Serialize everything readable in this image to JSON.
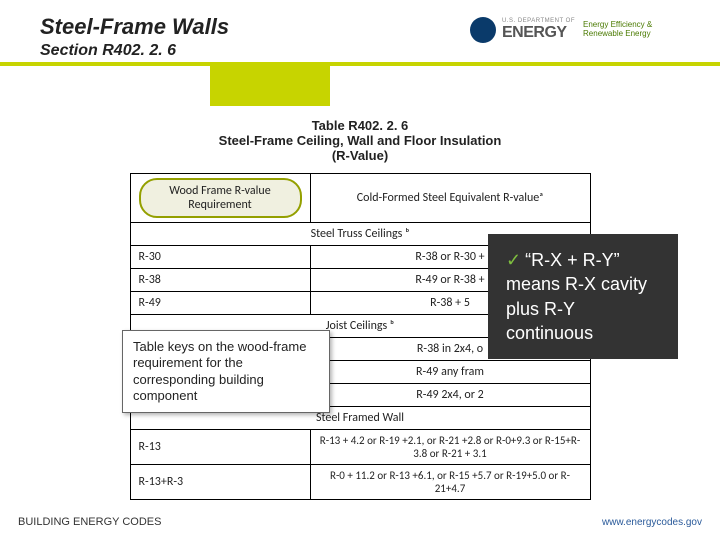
{
  "header": {
    "title": "Steel-Frame Walls",
    "subtitle": "Section R402. 2. 6",
    "logo": {
      "dept": "U.S. DEPARTMENT OF",
      "energy": "ENERGY",
      "tag1": "Energy Efficiency &",
      "tag2": "Renewable Energy"
    }
  },
  "table": {
    "title_l1": "Table R402. 2. 6",
    "title_l2": "Steel-Frame Ceiling, Wall and Floor Insulation",
    "title_l3": "(R-Value)",
    "col1": "Wood Frame R-value Requirement",
    "col2": "Cold-Formed Steel Equivalent R-valueᵃ",
    "sec1": "Steel Truss Ceilings ᵇ",
    "sec2": "Joist Ceilings ᵇ",
    "sec3": "Steel Framed Wall",
    "rows": [
      [
        "R-30",
        "R-38 or R-30 +"
      ],
      [
        "R-38",
        "R-49 or R-38 +"
      ],
      [
        "R-49",
        "R-38 + 5"
      ],
      [
        "",
        "R-38 in 2x4, o"
      ],
      [
        "",
        "R-49 any fram"
      ],
      [
        "",
        "R-49 2x4, or 2"
      ],
      [
        "R-13",
        "R-13 + 4.2 or R-19 +2.1, or R-21 +2.8 or R-0+9.3 or R-15+R-3.8 or R-21 + 3.1"
      ],
      [
        "R-13+R-3",
        "R-0 + 11.2 or R-13 +6.1, or R-15 +5.7 or R-19+5.0 or R-21+4.7"
      ]
    ]
  },
  "callouts": {
    "left": "Table keys on the wood-frame requirement for the corresponding building component",
    "check": "✓",
    "right": "“R-X + R-Y” means R-X cavity plus R-Y continuous"
  },
  "footer": {
    "left": "BUILDING ENERGY CODES",
    "right": "www.energycodes.gov"
  },
  "styling": {
    "accent_color": "#c7d400",
    "callout_bg": "#333333",
    "check_color": "#7fbf3f",
    "pill_border": "#94a000",
    "slide_w": 720,
    "slide_h": 540
  }
}
